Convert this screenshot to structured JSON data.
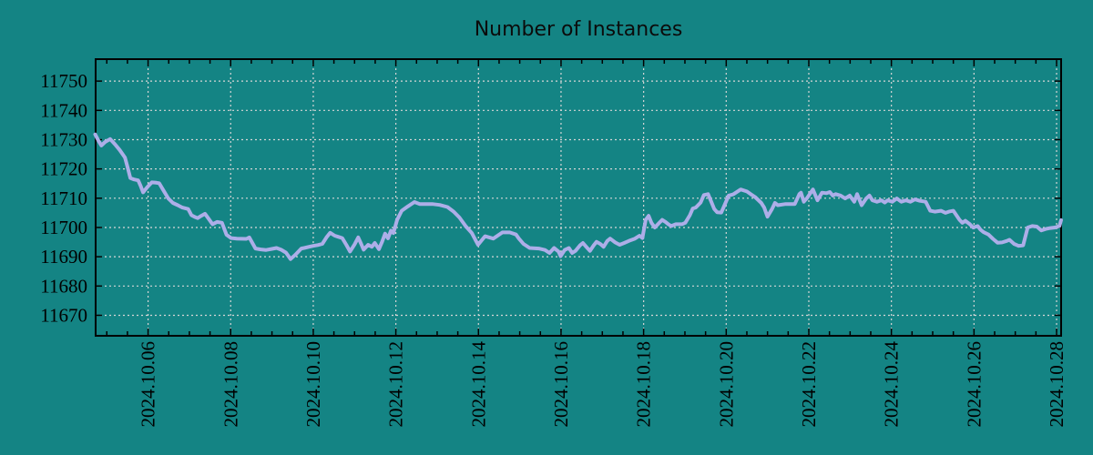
{
  "canvas": {
    "background_color": "#148484",
    "grid_color": "#d6d6d6",
    "axis_color": "#000000",
    "text_color": "#000000"
  },
  "chart_data": {
    "type": "line",
    "title": "Number of Instances",
    "xlabel": "",
    "ylabel": "",
    "legend": "none",
    "grid": "dashed, both axes, light gray on teal",
    "xlim_days": [
      4.73,
      28.11
    ],
    "ylim": [
      11663,
      11757.5
    ],
    "y_tick_values": [
      11750,
      11740,
      11730,
      11720,
      11710,
      11700,
      11690,
      11680,
      11670
    ],
    "x_tick_days": [
      6,
      8,
      10,
      12,
      14,
      16,
      18,
      20,
      22,
      24,
      26,
      28
    ],
    "x_tick_labels": [
      "2024.10.06",
      "2024.10.08",
      "2024.10.10",
      "2024.10.12",
      "2024.10.14",
      "2024.10.16",
      "2024.10.18",
      "2024.10.20",
      "2024.10.22",
      "2024.10.24",
      "2024.10.26",
      "2024.10.28"
    ],
    "x_minor_tick_interval_days": 0.5,
    "series": [
      {
        "name": "number-of-instances",
        "color": "#adaee8",
        "points_day_value": [
          [
            4.72,
            11731.8
          ],
          [
            4.8,
            11729.6
          ],
          [
            4.87,
            11728.0
          ],
          [
            4.96,
            11729.2
          ],
          [
            5.08,
            11730.2
          ],
          [
            5.2,
            11728.4
          ],
          [
            5.31,
            11726.5
          ],
          [
            5.44,
            11723.9
          ],
          [
            5.5,
            11720.8
          ],
          [
            5.57,
            11716.9
          ],
          [
            5.66,
            11716.4
          ],
          [
            5.76,
            11716.1
          ],
          [
            5.82,
            11714.2
          ],
          [
            5.88,
            11712.0
          ],
          [
            5.98,
            11713.8
          ],
          [
            6.09,
            11715.4
          ],
          [
            6.2,
            11715.3
          ],
          [
            6.27,
            11715.1
          ],
          [
            6.38,
            11712.5
          ],
          [
            6.49,
            11709.9
          ],
          [
            6.6,
            11708.4
          ],
          [
            6.72,
            11707.6
          ],
          [
            6.83,
            11706.8
          ],
          [
            6.97,
            11706.3
          ],
          [
            7.05,
            11704.2
          ],
          [
            7.13,
            11703.6
          ],
          [
            7.2,
            11703.2
          ],
          [
            7.29,
            11704.0
          ],
          [
            7.38,
            11704.7
          ],
          [
            7.47,
            11702.9
          ],
          [
            7.56,
            11701.1
          ],
          [
            7.67,
            11701.9
          ],
          [
            7.79,
            11701.6
          ],
          [
            7.9,
            11697.5
          ],
          [
            8.01,
            11696.4
          ],
          [
            8.15,
            11696.2
          ],
          [
            8.38,
            11696.1
          ],
          [
            8.45,
            11696.6
          ],
          [
            8.6,
            11692.8
          ],
          [
            8.73,
            11692.5
          ],
          [
            8.86,
            11692.3
          ],
          [
            9.0,
            11692.7
          ],
          [
            9.11,
            11693.0
          ],
          [
            9.22,
            11692.4
          ],
          [
            9.34,
            11691.4
          ],
          [
            9.45,
            11689.2
          ],
          [
            9.56,
            11690.6
          ],
          [
            9.71,
            11692.8
          ],
          [
            9.78,
            11693.0
          ],
          [
            9.9,
            11693.4
          ],
          [
            10.0,
            11693.7
          ],
          [
            10.11,
            11694.0
          ],
          [
            10.22,
            11694.4
          ],
          [
            10.32,
            11696.6
          ],
          [
            10.41,
            11698.2
          ],
          [
            10.52,
            11697.2
          ],
          [
            10.61,
            11696.8
          ],
          [
            10.7,
            11696.4
          ],
          [
            10.8,
            11694.1
          ],
          [
            10.89,
            11691.8
          ],
          [
            11.0,
            11694.2
          ],
          [
            11.09,
            11696.6
          ],
          [
            11.16,
            11694.4
          ],
          [
            11.22,
            11692.4
          ],
          [
            11.33,
            11694.1
          ],
          [
            11.42,
            11693.4
          ],
          [
            11.49,
            11694.7
          ],
          [
            11.59,
            11692.6
          ],
          [
            11.67,
            11695.2
          ],
          [
            11.74,
            11697.9
          ],
          [
            11.81,
            11696.3
          ],
          [
            11.88,
            11698.9
          ],
          [
            11.94,
            11698.1
          ],
          [
            12.03,
            11702.6
          ],
          [
            12.14,
            11705.7
          ],
          [
            12.29,
            11707.2
          ],
          [
            12.45,
            11708.7
          ],
          [
            12.58,
            11708.0
          ],
          [
            12.88,
            11708.0
          ],
          [
            13.06,
            11707.7
          ],
          [
            13.25,
            11707.0
          ],
          [
            13.4,
            11705.4
          ],
          [
            13.54,
            11703.4
          ],
          [
            13.69,
            11700.5
          ],
          [
            13.84,
            11698.1
          ],
          [
            13.99,
            11694.1
          ],
          [
            14.16,
            11697.0
          ],
          [
            14.36,
            11696.2
          ],
          [
            14.58,
            11698.3
          ],
          [
            14.76,
            11698.3
          ],
          [
            14.91,
            11697.6
          ],
          [
            14.98,
            11696.2
          ],
          [
            15.09,
            11694.4
          ],
          [
            15.24,
            11693.0
          ],
          [
            15.46,
            11692.8
          ],
          [
            15.61,
            11692.3
          ],
          [
            15.72,
            11691.3
          ],
          [
            15.83,
            11693.0
          ],
          [
            15.94,
            11691.8
          ],
          [
            15.99,
            11690.2
          ],
          [
            16.09,
            11692.3
          ],
          [
            16.19,
            11693.0
          ],
          [
            16.27,
            11691.3
          ],
          [
            16.35,
            11692.0
          ],
          [
            16.46,
            11693.9
          ],
          [
            16.53,
            11694.7
          ],
          [
            16.61,
            11693.4
          ],
          [
            16.7,
            11692.0
          ],
          [
            16.79,
            11693.9
          ],
          [
            16.86,
            11695.1
          ],
          [
            16.95,
            11694.4
          ],
          [
            17.03,
            11693.4
          ],
          [
            17.12,
            11695.4
          ],
          [
            17.19,
            11696.2
          ],
          [
            17.31,
            11694.9
          ],
          [
            17.42,
            11694.1
          ],
          [
            17.53,
            11694.7
          ],
          [
            17.64,
            11695.4
          ],
          [
            17.79,
            11696.2
          ],
          [
            17.9,
            11697.2
          ],
          [
            17.97,
            11696.4
          ],
          [
            18.05,
            11702.6
          ],
          [
            18.12,
            11704.0
          ],
          [
            18.19,
            11701.6
          ],
          [
            18.27,
            11700.0
          ],
          [
            18.38,
            11701.6
          ],
          [
            18.45,
            11702.6
          ],
          [
            18.53,
            11701.9
          ],
          [
            18.6,
            11701.1
          ],
          [
            18.67,
            11700.5
          ],
          [
            18.78,
            11701.1
          ],
          [
            18.93,
            11701.1
          ],
          [
            19.01,
            11701.6
          ],
          [
            19.12,
            11704.2
          ],
          [
            19.19,
            11706.5
          ],
          [
            19.26,
            11706.8
          ],
          [
            19.38,
            11708.5
          ],
          [
            19.46,
            11711.1
          ],
          [
            19.56,
            11711.4
          ],
          [
            19.63,
            11709.1
          ],
          [
            19.71,
            11706.3
          ],
          [
            19.78,
            11705.2
          ],
          [
            19.88,
            11705.1
          ],
          [
            20.06,
            11710.9
          ],
          [
            20.17,
            11711.3
          ],
          [
            20.35,
            11713.0
          ],
          [
            20.5,
            11712.3
          ],
          [
            20.59,
            11711.4
          ],
          [
            20.7,
            11710.4
          ],
          [
            20.85,
            11708.4
          ],
          [
            20.92,
            11706.8
          ],
          [
            21.0,
            11703.7
          ],
          [
            21.11,
            11706.3
          ],
          [
            21.18,
            11708.4
          ],
          [
            21.25,
            11707.6
          ],
          [
            21.44,
            11708.0
          ],
          [
            21.66,
            11708.0
          ],
          [
            21.77,
            11711.4
          ],
          [
            21.81,
            11711.9
          ],
          [
            21.88,
            11708.8
          ],
          [
            21.95,
            11709.9
          ],
          [
            22.1,
            11713.0
          ],
          [
            22.21,
            11709.3
          ],
          [
            22.32,
            11711.9
          ],
          [
            22.43,
            11711.7
          ],
          [
            22.51,
            11712.1
          ],
          [
            22.58,
            11710.9
          ],
          [
            22.65,
            11711.4
          ],
          [
            22.77,
            11710.9
          ],
          [
            22.88,
            11709.9
          ],
          [
            22.99,
            11710.9
          ],
          [
            23.1,
            11708.8
          ],
          [
            23.17,
            11711.4
          ],
          [
            23.28,
            11707.6
          ],
          [
            23.39,
            11709.9
          ],
          [
            23.47,
            11710.9
          ],
          [
            23.54,
            11709.3
          ],
          [
            23.65,
            11708.8
          ],
          [
            23.76,
            11709.3
          ],
          [
            23.84,
            11708.5
          ],
          [
            23.91,
            11709.3
          ],
          [
            24.02,
            11708.8
          ],
          [
            24.13,
            11709.9
          ],
          [
            24.24,
            11708.8
          ],
          [
            24.35,
            11709.3
          ],
          [
            24.46,
            11708.8
          ],
          [
            24.57,
            11709.6
          ],
          [
            24.69,
            11709.1
          ],
          [
            24.83,
            11708.8
          ],
          [
            24.94,
            11705.7
          ],
          [
            25.05,
            11705.4
          ],
          [
            25.2,
            11705.7
          ],
          [
            25.31,
            11705.0
          ],
          [
            25.39,
            11705.4
          ],
          [
            25.5,
            11705.7
          ],
          [
            25.65,
            11702.6
          ],
          [
            25.72,
            11701.6
          ],
          [
            25.79,
            11702.3
          ],
          [
            25.9,
            11701.1
          ],
          [
            25.98,
            11700.0
          ],
          [
            26.09,
            11700.5
          ],
          [
            26.16,
            11699.2
          ],
          [
            26.23,
            11698.4
          ],
          [
            26.35,
            11697.6
          ],
          [
            26.46,
            11696.1
          ],
          [
            26.57,
            11694.8
          ],
          [
            26.68,
            11694.9
          ],
          [
            26.79,
            11695.4
          ],
          [
            26.86,
            11695.8
          ],
          [
            26.97,
            11694.4
          ],
          [
            27.08,
            11693.7
          ],
          [
            27.19,
            11693.9
          ],
          [
            27.3,
            11700.0
          ],
          [
            27.41,
            11700.5
          ],
          [
            27.52,
            11700.3
          ],
          [
            27.63,
            11699.0
          ],
          [
            27.74,
            11699.5
          ],
          [
            27.85,
            11699.8
          ],
          [
            27.96,
            11700.0
          ],
          [
            28.07,
            11700.5
          ],
          [
            28.11,
            11702.5
          ]
        ]
      }
    ]
  }
}
